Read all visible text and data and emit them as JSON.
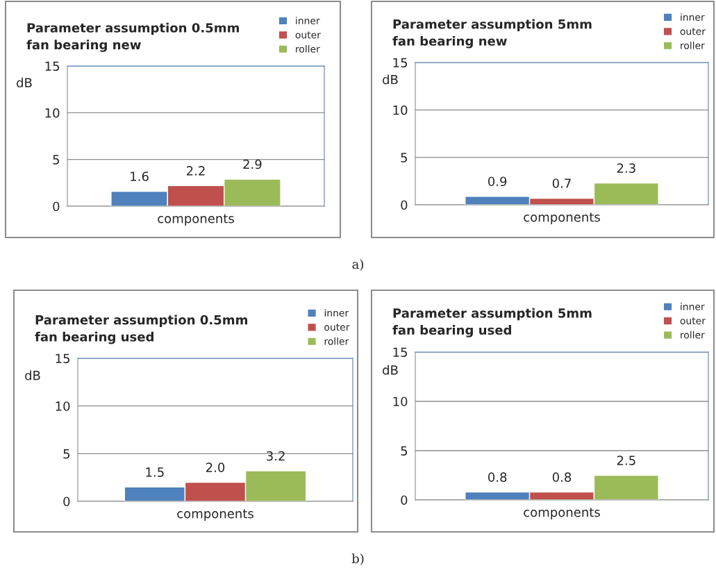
{
  "chart_data": [
    {
      "type": "bar",
      "title": "Parameter assumption 0.5mm\nfan bearing new",
      "xlabel": "components",
      "ylabel": "dB",
      "categories": [
        null
      ],
      "series": [
        {
          "name": "inner",
          "color": "#4f81bd",
          "values": [
            1.6
          ]
        },
        {
          "name": "outer",
          "color": "#c0504d",
          "values": [
            2.2
          ]
        },
        {
          "name": "roller",
          "color": "#9bbb59",
          "values": [
            2.9
          ]
        }
      ],
      "ylim": [
        0,
        15
      ],
      "yticks": [
        0,
        5,
        10,
        15
      ],
      "grid": "y",
      "legend": "top right",
      "data_labels": true,
      "annotations": [
        "a)"
      ]
    },
    {
      "type": "bar",
      "title": "Parameter assumption 5mm\nfan bearing new",
      "xlabel": "components",
      "ylabel": "dB",
      "categories": [
        null
      ],
      "series": [
        {
          "name": "inner",
          "color": "#4f81bd",
          "values": [
            0.9
          ]
        },
        {
          "name": "outer",
          "color": "#c0504d",
          "values": [
            0.7
          ]
        },
        {
          "name": "roller",
          "color": "#9bbb59",
          "values": [
            2.3
          ]
        }
      ],
      "ylim": [
        0,
        15
      ],
      "yticks": [
        0,
        5,
        10,
        15
      ],
      "grid": "y",
      "legend": "top right",
      "data_labels": true
    },
    {
      "type": "bar",
      "title": "Parameter assumption 0.5mm\nfan bearing used",
      "xlabel": "components",
      "ylabel": "dB",
      "categories": [
        null
      ],
      "series": [
        {
          "name": "inner",
          "color": "#4f81bd",
          "values": [
            1.5
          ],
          "value_labels": [
            "1.5"
          ]
        },
        {
          "name": "outer",
          "color": "#c0504d",
          "values": [
            2
          ],
          "value_labels": [
            "2.0"
          ]
        },
        {
          "name": "roller",
          "color": "#9bbb59",
          "values": [
            3.2
          ],
          "value_labels": [
            "3.2"
          ]
        }
      ],
      "ylim": [
        0,
        15
      ],
      "yticks": [
        0,
        5,
        10,
        15
      ],
      "grid": "y",
      "legend": "top right",
      "annotations": [
        "b)"
      ]
    },
    {
      "type": "bar",
      "title": "Parameter assumption 5mm\nfan bearing used",
      "xlabel": "components",
      "ylabel": "dB",
      "categories": [
        null
      ],
      "series": [
        {
          "name": "inner",
          "color": "#4f81bd",
          "values": [
            0.8
          ]
        },
        {
          "name": "outer",
          "color": "#c0504d",
          "values": [
            0.8
          ]
        },
        {
          "name": "roller",
          "color": "#9bbb59",
          "values": [
            2.5
          ]
        }
      ],
      "ylim": [
        0,
        15
      ],
      "yticks": [
        0,
        5,
        10,
        15
      ],
      "grid": "y",
      "legend": "top right",
      "data_labels": true
    }
  ]
}
